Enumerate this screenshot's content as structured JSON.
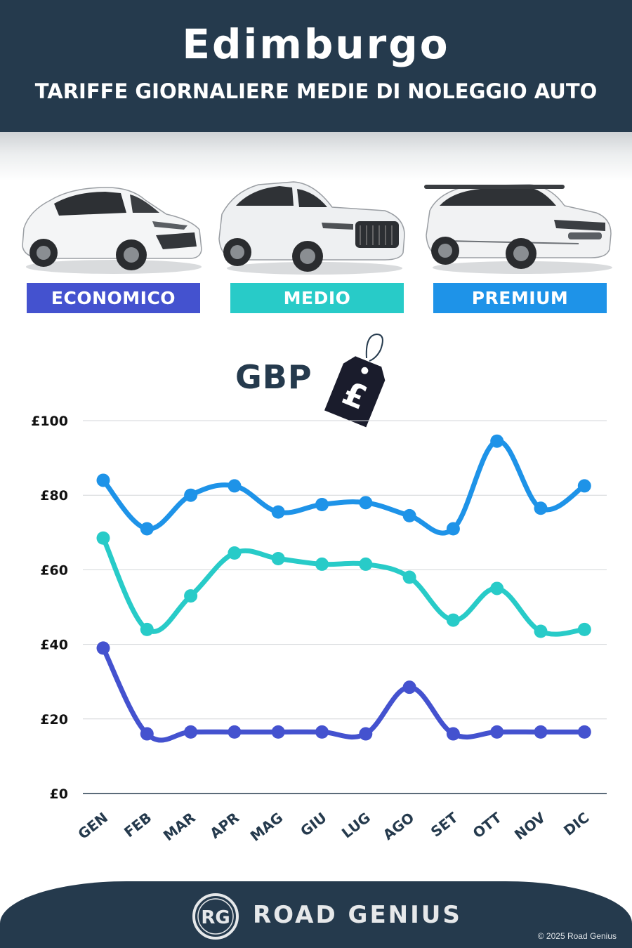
{
  "header": {
    "title": "Edimburgo",
    "subtitle": "TARIFFE GIORNALIERE MEDIE DI NOLEGGIO AUTO"
  },
  "categories": [
    {
      "label": "ECONOMICO",
      "color": "#4452cf",
      "car": "hatchback"
    },
    {
      "label": "MEDIO",
      "color": "#28cbc8",
      "car": "suv"
    },
    {
      "label": "PREMIUM",
      "color": "#1e93e8",
      "car": "suv-premium"
    }
  ],
  "currency": {
    "label": "GBP",
    "tag_symbol": "£"
  },
  "colors": {
    "navy": "#253a4d",
    "grid": "#d3d6d9"
  },
  "chart_data": {
    "type": "line",
    "categories": [
      "GEN",
      "FEB",
      "MAR",
      "APR",
      "MAG",
      "GIU",
      "LUG",
      "AGO",
      "SET",
      "OTT",
      "NOV",
      "DIC"
    ],
    "y_tick_labels": [
      "£0",
      "£20",
      "£40",
      "£60",
      "£80",
      "£100"
    ],
    "ylim": [
      0,
      100
    ],
    "grid": true,
    "series": [
      {
        "name": "PREMIUM",
        "color": "#1e93e8",
        "values": [
          84,
          71,
          80,
          82.5,
          75.5,
          77.5,
          78,
          74.5,
          71,
          94.5,
          76.5,
          82.5
        ]
      },
      {
        "name": "MEDIO",
        "color": "#28cbc8",
        "values": [
          68.5,
          44,
          53,
          64.5,
          63,
          61.5,
          61.5,
          58,
          46.5,
          55,
          43.5,
          44
        ]
      },
      {
        "name": "ECONOMICO",
        "color": "#4452cf",
        "values": [
          39,
          16,
          16.5,
          16.5,
          16.5,
          16.5,
          16,
          28.5,
          16,
          16.5,
          16.5,
          16.5
        ]
      }
    ]
  },
  "footer": {
    "logo_text": "RG",
    "brand": "ROAD GENIUS",
    "copyright": "© 2025 Road Genius"
  }
}
